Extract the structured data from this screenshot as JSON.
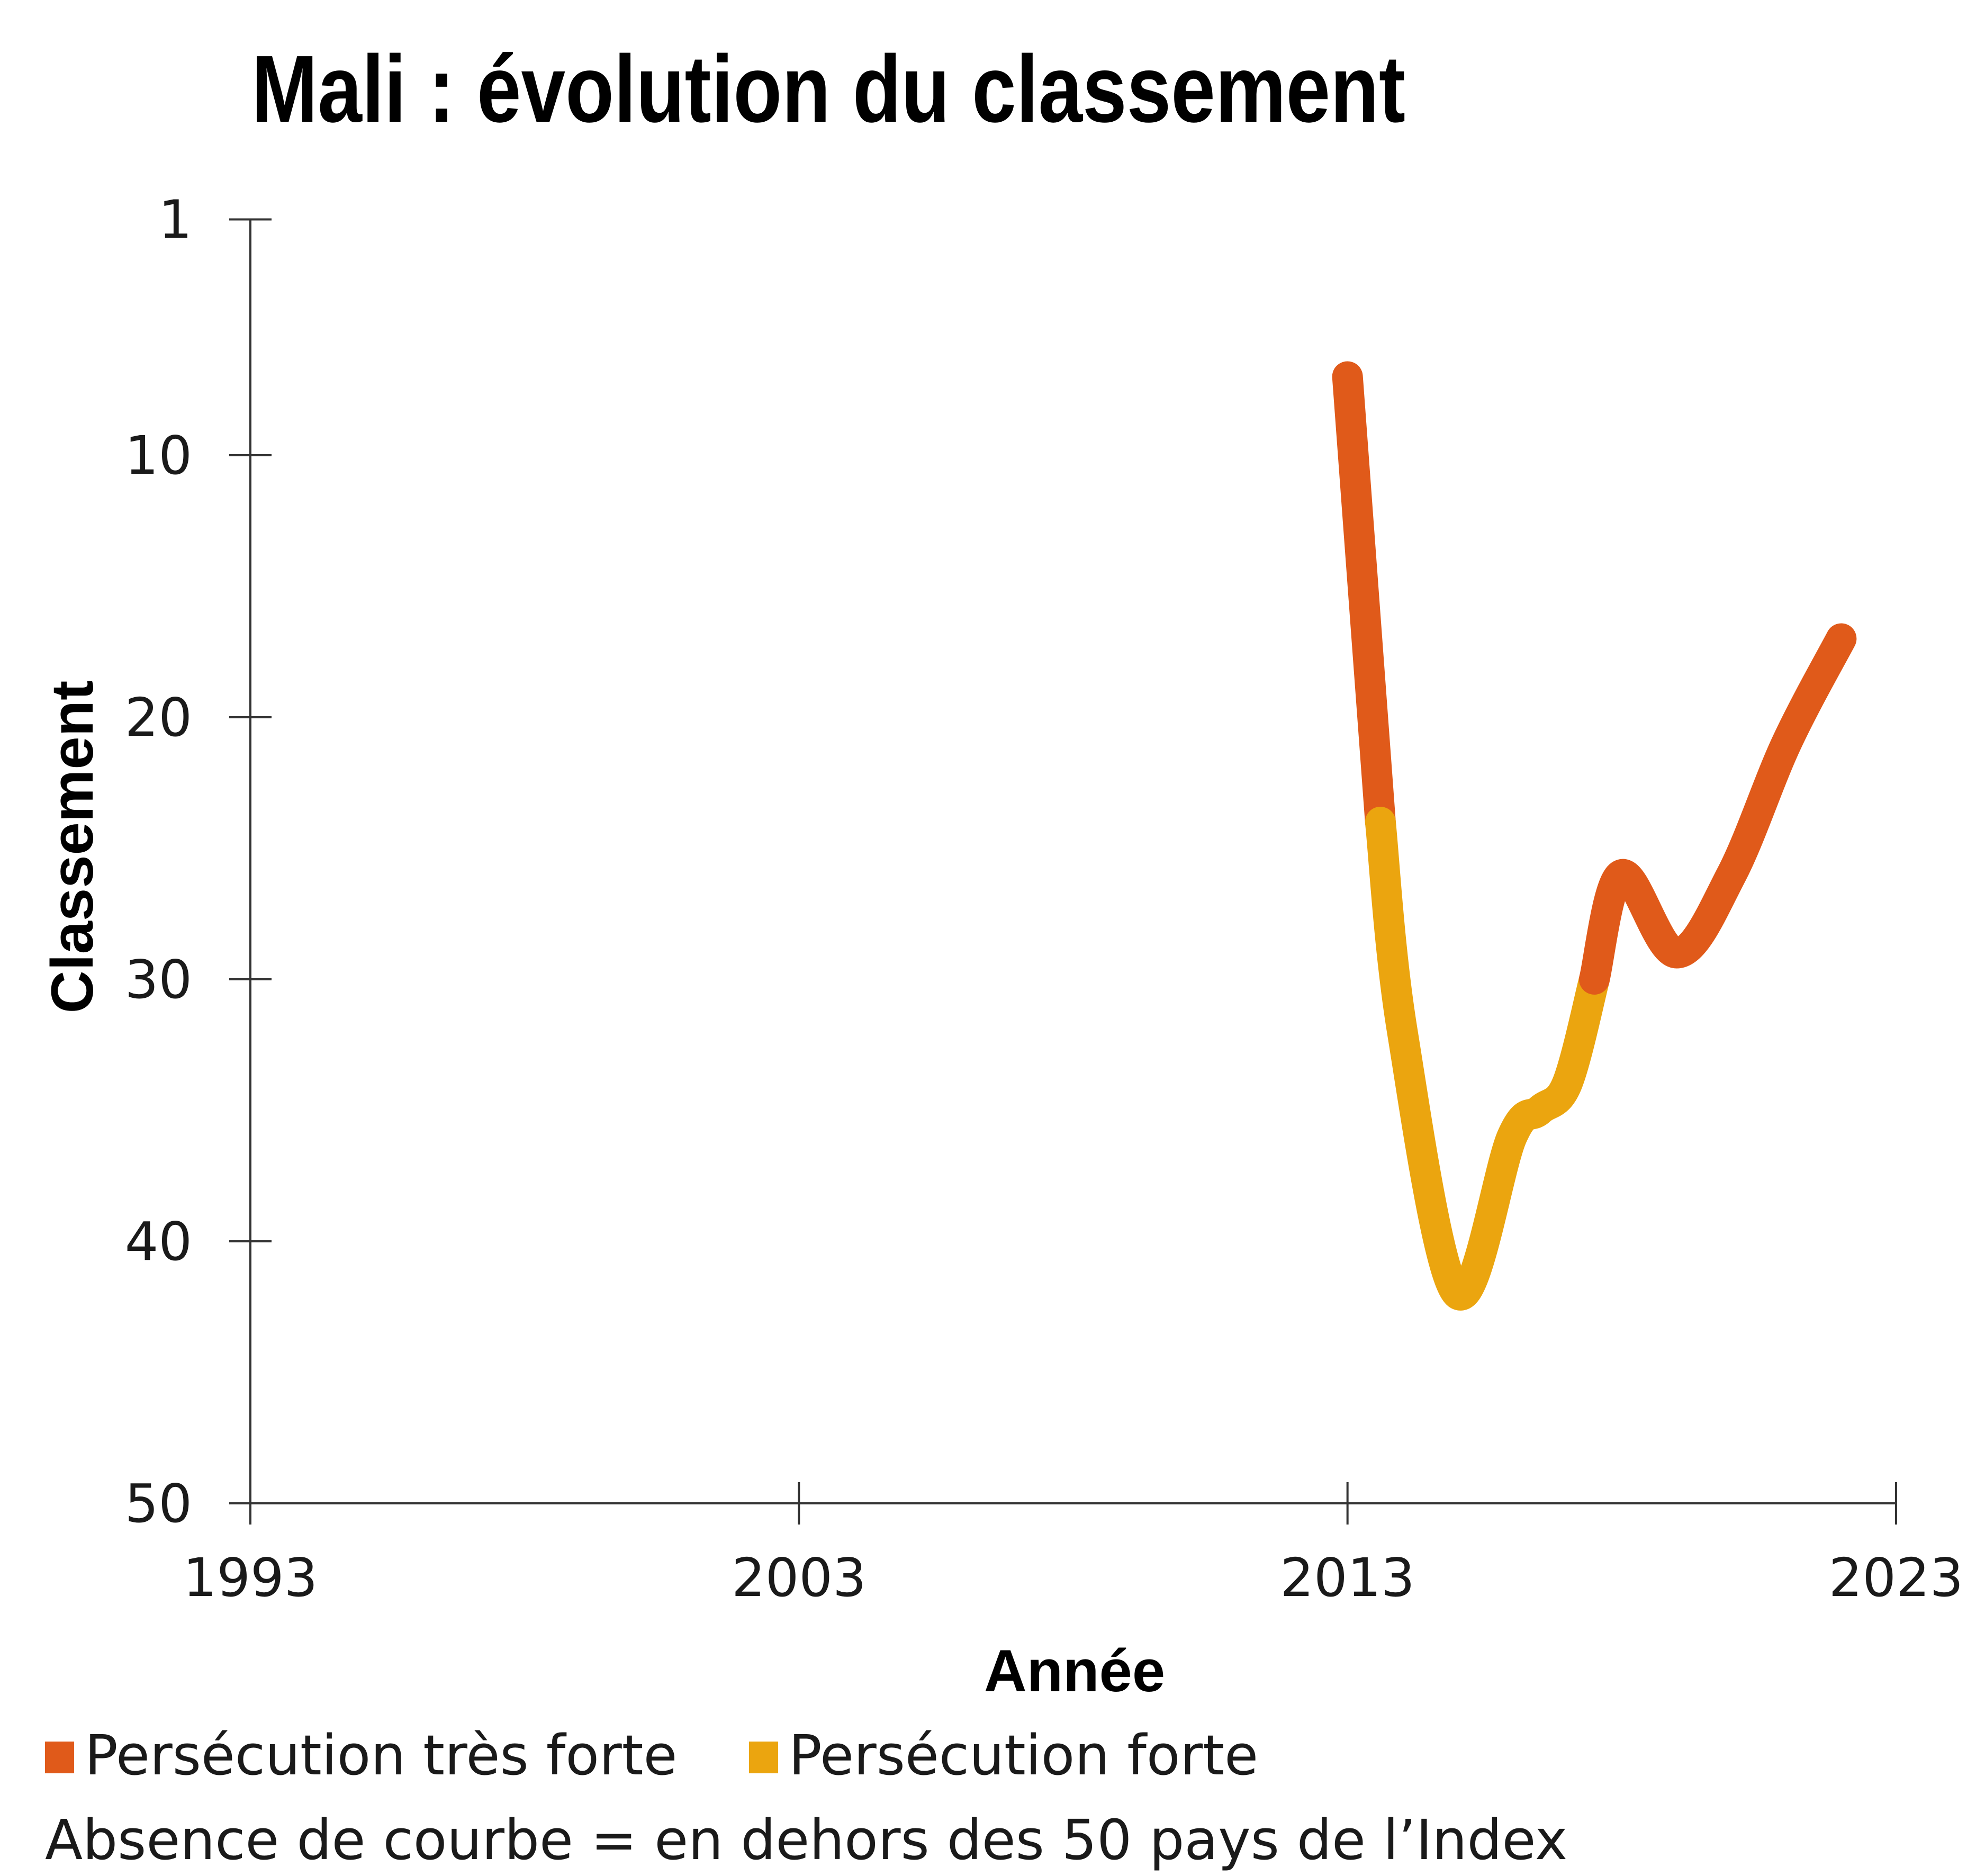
{
  "chart_data": {
    "type": "line",
    "title": "Mali : évolution du classement",
    "xlabel": "Année",
    "ylabel": "Classement",
    "x_ticks": [
      1993,
      2003,
      2013,
      2023
    ],
    "y_ticks": [
      1,
      10,
      20,
      30,
      40,
      50
    ],
    "xlim": [
      1993,
      2023
    ],
    "ylim": [
      50,
      1
    ],
    "y_inverted": true,
    "grid": false,
    "series": [
      {
        "name": "Persécution très forte",
        "color": "#e05a1a",
        "points": [
          [
            2013,
            7
          ],
          [
            2013.6,
            24
          ]
        ]
      },
      {
        "name": "Persécution forte",
        "color": "#eba50f",
        "points": [
          [
            2013.6,
            24
          ],
          [
            2014,
            32
          ],
          [
            2015,
            42
          ],
          [
            2016,
            36
          ],
          [
            2016.5,
            35
          ],
          [
            2017,
            34
          ],
          [
            2017.5,
            30
          ]
        ]
      },
      {
        "name": "Persécution très forte",
        "color": "#e05a1a",
        "points": [
          [
            2017.5,
            30
          ],
          [
            2018,
            26
          ],
          [
            2019,
            29
          ],
          [
            2020,
            26
          ],
          [
            2021,
            21
          ],
          [
            2022,
            17
          ]
        ]
      }
    ],
    "legend": {
      "placement": "bottom-left",
      "items": [
        {
          "label": "Persécution très forte",
          "color": "#e05a1a"
        },
        {
          "label": "Persécution forte",
          "color": "#eba50f"
        }
      ]
    },
    "note": "Absence de courbe = en dehors des 50 pays de l’Index"
  }
}
